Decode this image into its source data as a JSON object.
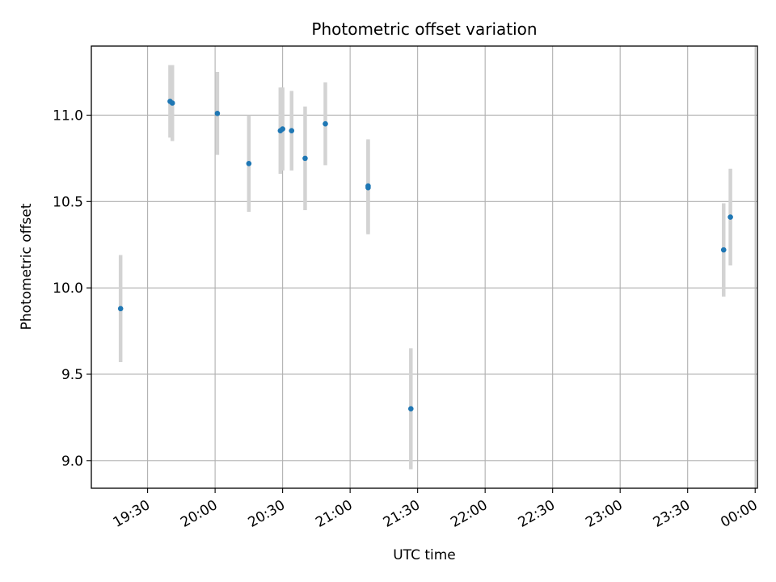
{
  "chart_data": {
    "type": "scatter",
    "title": "Photometric offset variation",
    "xlabel": "UTC time",
    "ylabel": "Photometric offset",
    "xlim": [
      "19:05",
      "00:01"
    ],
    "ylim": [
      8.84,
      11.4
    ],
    "grid": true,
    "x_ticks": [
      "19:30",
      "20:00",
      "20:30",
      "21:00",
      "21:30",
      "22:00",
      "22:30",
      "23:00",
      "23:30",
      "00:00"
    ],
    "y_ticks": [
      "9.0",
      "9.5",
      "10.0",
      "10.5",
      "11.0"
    ],
    "series": [
      {
        "marker_color": "#1f77b4",
        "error_color": "#d3d3d3",
        "points": [
          {
            "x": "19:18",
            "y": 9.88,
            "yerr": 0.31
          },
          {
            "x": "19:40",
            "y": 11.08,
            "yerr": 0.21
          },
          {
            "x": "19:41",
            "y": 11.07,
            "yerr": 0.22
          },
          {
            "x": "20:01",
            "y": 11.01,
            "yerr": 0.24
          },
          {
            "x": "20:15",
            "y": 10.72,
            "yerr": 0.28
          },
          {
            "x": "20:29",
            "y": 10.91,
            "yerr": 0.25
          },
          {
            "x": "20:30",
            "y": 10.92,
            "yerr": 0.24
          },
          {
            "x": "20:34",
            "y": 10.91,
            "yerr": 0.23
          },
          {
            "x": "20:40",
            "y": 10.75,
            "yerr": 0.3
          },
          {
            "x": "20:49",
            "y": 10.95,
            "yerr": 0.24
          },
          {
            "x": "21:08",
            "y": 10.59,
            "yerr": 0.27
          },
          {
            "x": "21:08",
            "y": 10.58,
            "yerr": 0.27
          },
          {
            "x": "21:27",
            "y": 9.3,
            "yerr": 0.35
          },
          {
            "x": "23:46",
            "y": 10.22,
            "yerr": 0.27
          },
          {
            "x": "23:49",
            "y": 10.41,
            "yerr": 0.28
          }
        ]
      }
    ]
  }
}
